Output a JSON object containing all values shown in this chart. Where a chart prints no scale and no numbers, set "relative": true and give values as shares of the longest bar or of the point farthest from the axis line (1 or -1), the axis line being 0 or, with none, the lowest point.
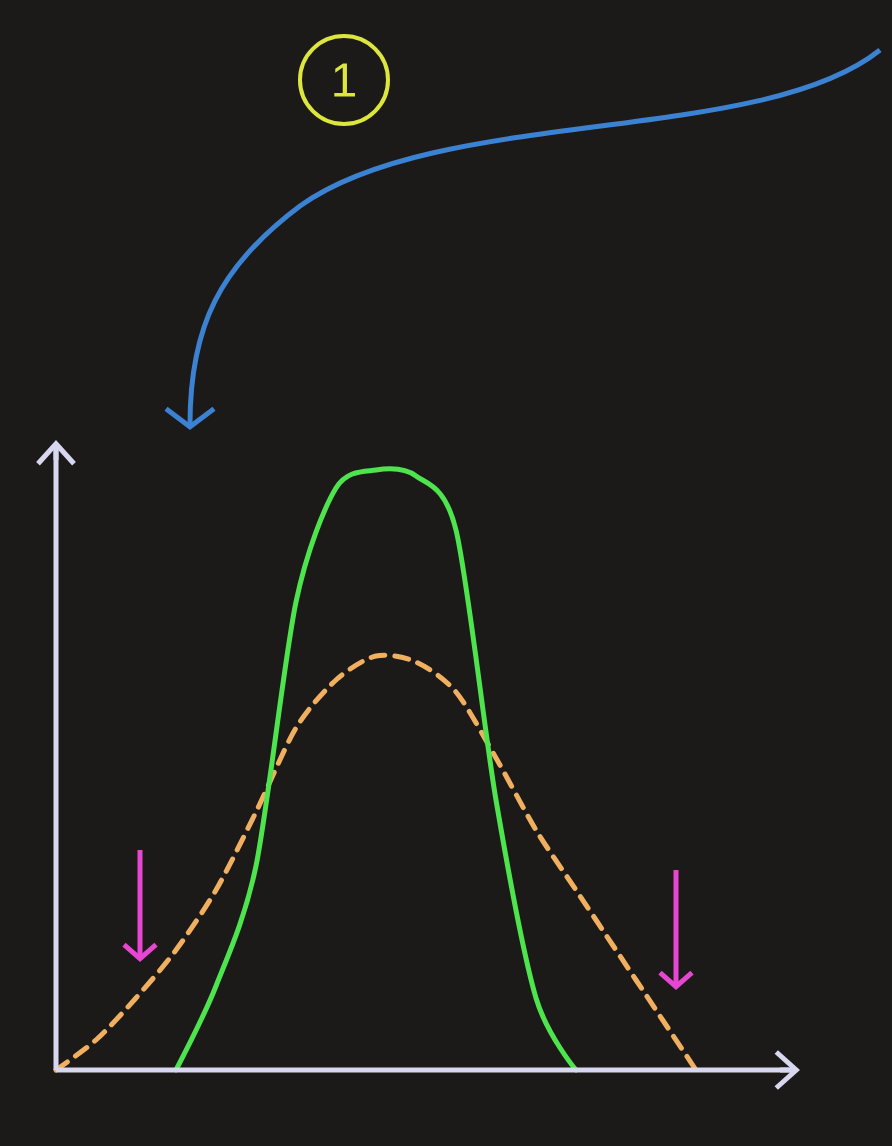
{
  "chart_data": {
    "type": "line",
    "relative": true,
    "annotations": [
      "1"
    ],
    "categories": [
      null,
      null,
      null,
      null,
      null,
      null,
      null,
      null,
      null,
      null,
      null,
      null,
      null,
      null,
      null,
      null,
      null
    ],
    "series": [
      {
        "color": "#f0b060",
        "line_style": "dashed",
        "values": [
          0,
          0.05,
          0.12,
          0.2,
          0.3,
          0.43,
          0.57,
          0.65,
          0.69,
          0.68,
          0.63,
          0.52,
          0.4,
          0.3,
          0.2,
          0.1,
          0
        ]
      },
      {
        "color": "#4ee44e",
        "line_style": "solid",
        "values": [
          null,
          null,
          null,
          0,
          0.14,
          0.34,
          0.78,
          0.97,
          1,
          0.99,
          0.9,
          0.45,
          0.12,
          0,
          null,
          null,
          null
        ]
      }
    ]
  }
}
